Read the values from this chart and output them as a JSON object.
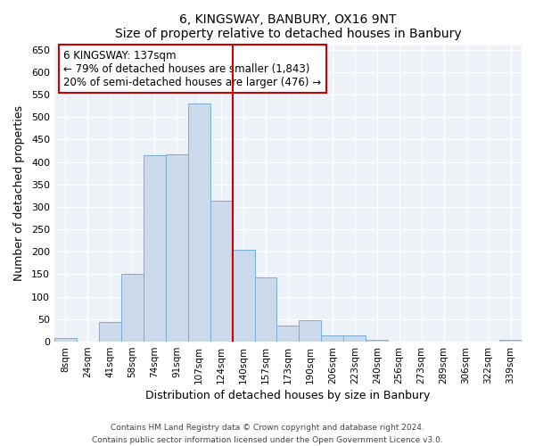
{
  "title": "6, KINGSWAY, BANBURY, OX16 9NT",
  "subtitle": "Size of property relative to detached houses in Banbury",
  "xlabel": "Distribution of detached houses by size in Banbury",
  "ylabel": "Number of detached properties",
  "bar_labels": [
    "8sqm",
    "24sqm",
    "41sqm",
    "58sqm",
    "74sqm",
    "91sqm",
    "107sqm",
    "124sqm",
    "140sqm",
    "157sqm",
    "173sqm",
    "190sqm",
    "206sqm",
    "223sqm",
    "240sqm",
    "256sqm",
    "273sqm",
    "289sqm",
    "306sqm",
    "322sqm",
    "339sqm"
  ],
  "bar_values": [
    8,
    0,
    44,
    150,
    415,
    416,
    530,
    313,
    205,
    144,
    35,
    48,
    15,
    14,
    5,
    1,
    1,
    1,
    0,
    0,
    5
  ],
  "bar_color": "#ccd9ea",
  "bar_edge_color": "#7aaed4",
  "vline_x": 7.5,
  "vline_color": "#cc0000",
  "annotation_title": "6 KINGSWAY: 137sqm",
  "annotation_line1": "← 79% of detached houses are smaller (1,843)",
  "annotation_line2": "20% of semi-detached houses are larger (476) →",
  "annotation_box_color": "#cc0000",
  "ylim": [
    0,
    660
  ],
  "yticks": [
    0,
    50,
    100,
    150,
    200,
    250,
    300,
    350,
    400,
    450,
    500,
    550,
    600,
    650
  ],
  "footnote1": "Contains HM Land Registry data © Crown copyright and database right 2024.",
  "footnote2": "Contains public sector information licensed under the Open Government Licence v3.0.",
  "bg_color": "#edf2f9"
}
